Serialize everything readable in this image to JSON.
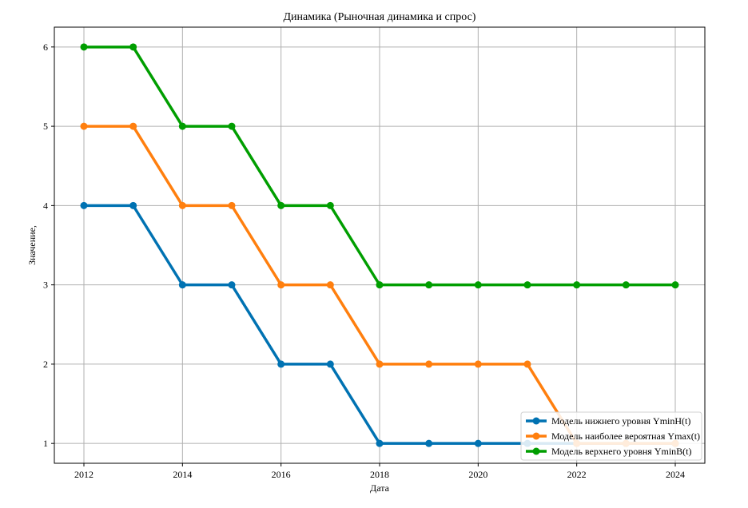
{
  "chart_data": {
    "type": "line",
    "title": "Динамика (Рыночная динамика и спрос)",
    "xlabel": "Дата",
    "ylabel": "Значение,",
    "x": [
      2012,
      2013,
      2014,
      2015,
      2016,
      2017,
      2018,
      2019,
      2020,
      2021,
      2022,
      2023,
      2024
    ],
    "x_ticks": [
      2012,
      2014,
      2016,
      2018,
      2020,
      2022,
      2024
    ],
    "y_ticks": [
      1,
      2,
      3,
      4,
      5,
      6
    ],
    "xlim": [
      2011.4,
      2024.6
    ],
    "ylim": [
      0.75,
      6.25
    ],
    "grid": true,
    "legend_position": "bottom-right",
    "series": [
      {
        "name": "Модель нижнего уровня YminH(t)",
        "color": "#0072b2",
        "values": [
          4,
          4,
          3,
          3,
          2,
          2,
          1,
          1,
          1,
          1,
          1,
          1,
          1
        ]
      },
      {
        "name": "Модель наиболее вероятная Ymax(t)",
        "color": "#ff7f0e",
        "values": [
          5,
          5,
          4,
          4,
          3,
          3,
          2,
          2,
          2,
          2,
          1,
          1,
          1
        ]
      },
      {
        "name": "Модель верхнего уровня YminB(t)",
        "color": "#009e00",
        "values": [
          6,
          6,
          5,
          5,
          4,
          4,
          3,
          3,
          3,
          3,
          3,
          3,
          3
        ]
      }
    ]
  }
}
